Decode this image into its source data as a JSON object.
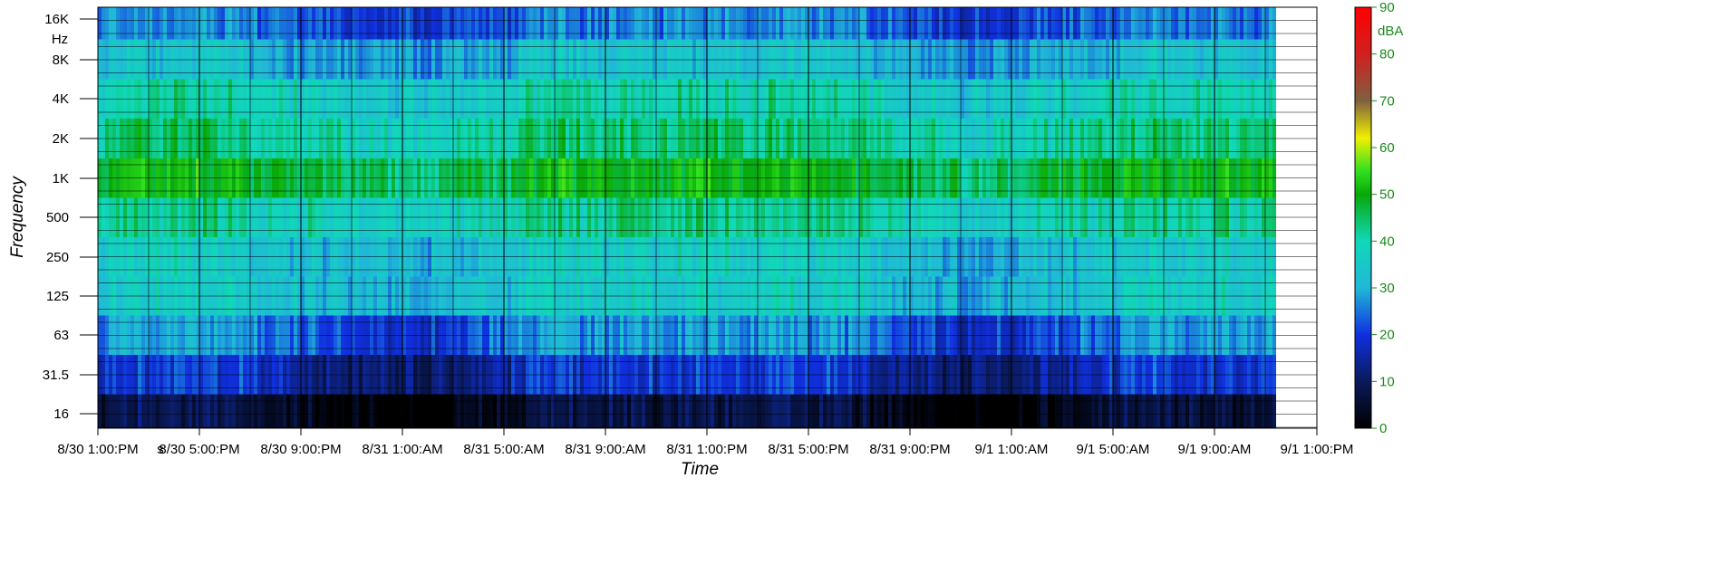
{
  "chart_data": {
    "type": "heatmap",
    "title": "",
    "xlabel": "Time",
    "ylabel": "Frequency",
    "y_unit_label": "Hz",
    "y_scale": "log",
    "y_ticks": [
      16,
      31.5,
      63,
      125,
      250,
      500,
      1000,
      2000,
      4000,
      8000,
      16000
    ],
    "y_tick_labels": [
      "16",
      "31.5",
      "63",
      "125",
      "250",
      "500",
      "1K",
      "2K",
      "4K",
      "8K",
      "16K"
    ],
    "x_tick_labels": [
      "8/30 1:00:PM",
      "8/30 5:00:PM",
      "8/30 9:00:PM",
      "8/31 1:00:AM",
      "8/31 5:00:AM",
      "8/31 9:00:AM",
      "8/31 1:00:PM",
      "8/31 5:00:PM",
      "8/31 9:00:PM",
      "9/1 1:00:AM",
      "9/1 5:00:AM",
      "9/1 9:00:AM",
      "9/1 1:00:PM"
    ],
    "x_tick_suffix": "s",
    "grid": true,
    "data_extent": {
      "start": "8/30 1:00:PM",
      "end_approx": "9/1 12:00:PM"
    },
    "colorbar": {
      "label": "dBA",
      "min": 0,
      "max": 90,
      "ticks": [
        0,
        10,
        20,
        30,
        40,
        50,
        60,
        70,
        80,
        90
      ],
      "tick_color": "#1a8a1a",
      "stops": [
        {
          "value": 0,
          "color": "#000000"
        },
        {
          "value": 10,
          "color": "#0a1a5a"
        },
        {
          "value": 20,
          "color": "#1030e0"
        },
        {
          "value": 30,
          "color": "#20b8d8"
        },
        {
          "value": 40,
          "color": "#10d8b8"
        },
        {
          "value": 50,
          "color": "#08a808"
        },
        {
          "value": 55,
          "color": "#30e020"
        },
        {
          "value": 62,
          "color": "#f0f000"
        },
        {
          "value": 70,
          "color": "#806040"
        },
        {
          "value": 80,
          "color": "#d02020"
        },
        {
          "value": 90,
          "color": "#ff0000"
        }
      ]
    },
    "level_profile_by_band": {
      "bands": [
        "16",
        "31.5",
        "63",
        "125",
        "250",
        "500",
        "1K",
        "2K",
        "4K",
        "8K",
        "16K"
      ],
      "typical_dBA": [
        8,
        20,
        28,
        36,
        36,
        42,
        50,
        44,
        40,
        33,
        26
      ]
    }
  }
}
